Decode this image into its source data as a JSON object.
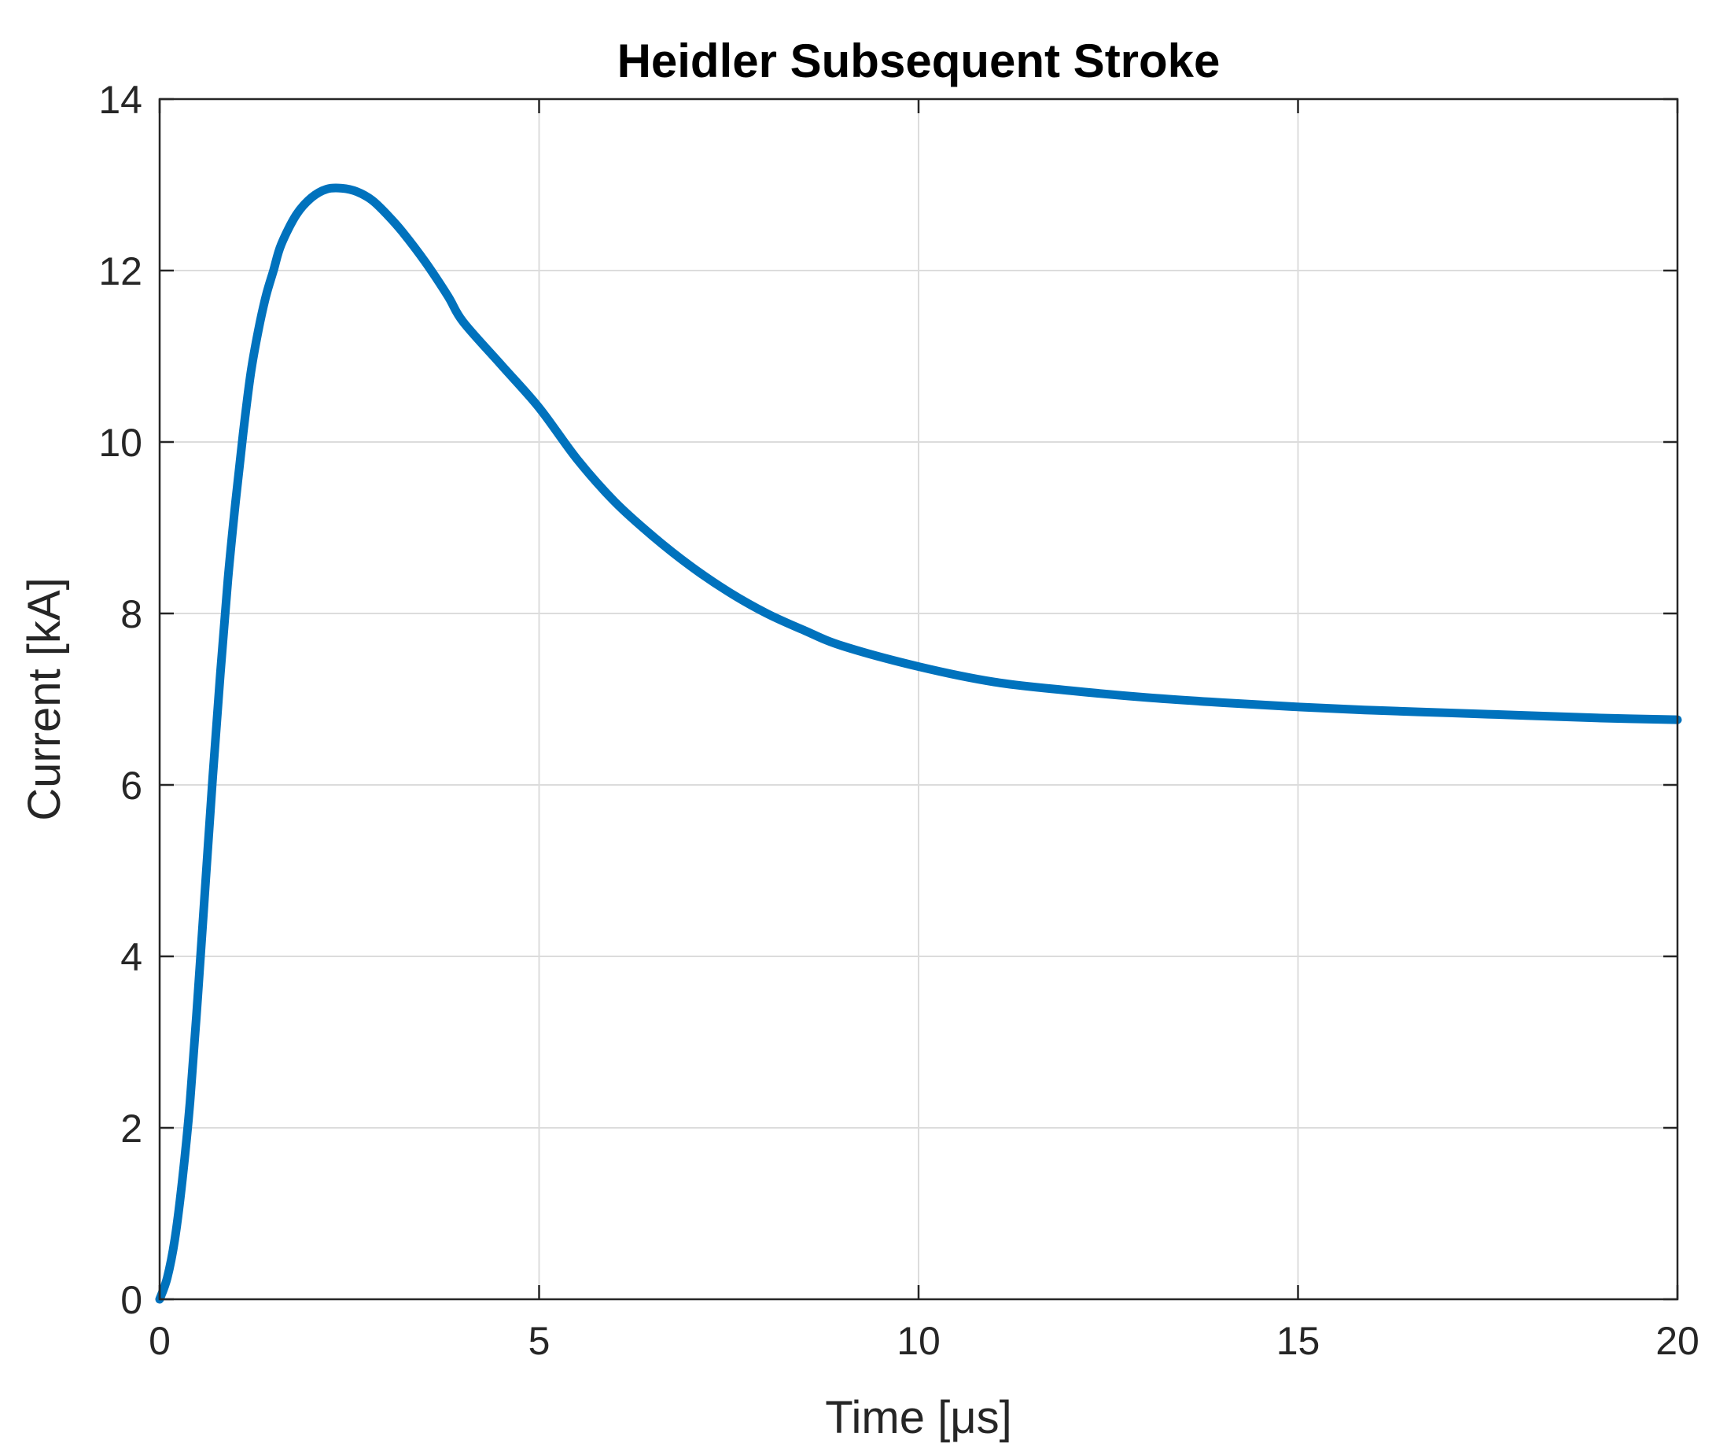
{
  "chart_data": {
    "type": "line",
    "title": "Heidler Subsequent Stroke",
    "xlabel": "Time [μs]",
    "ylabel": "Current [kA]",
    "xlim": [
      0,
      20
    ],
    "ylim": [
      0,
      14
    ],
    "xticks": [
      0,
      5,
      10,
      15,
      20
    ],
    "yticks": [
      0,
      2,
      4,
      6,
      8,
      10,
      12,
      14
    ],
    "grid": true,
    "legend": "none",
    "series": [
      {
        "color": "#0072BD",
        "x": [
          0,
          0.1,
          0.2,
          0.3,
          0.4,
          0.5,
          0.6,
          0.7,
          0.8,
          0.9,
          1.0,
          1.1,
          1.2,
          1.3,
          1.4,
          1.5,
          1.6,
          1.8,
          2.0,
          2.2,
          2.4,
          2.6,
          2.8,
          3.0,
          3.2,
          3.5,
          3.8,
          4.0,
          4.5,
          5.0,
          5.5,
          6.0,
          6.5,
          7.0,
          7.5,
          8.0,
          8.5,
          9.0,
          10.0,
          11.0,
          12.0,
          13.0,
          14.0,
          15.0,
          16.0,
          17.0,
          18.0,
          19.0,
          20.0
        ],
        "values": [
          0,
          0.25,
          0.7,
          1.4,
          2.3,
          3.5,
          4.8,
          6.1,
          7.3,
          8.4,
          9.3,
          10.1,
          10.8,
          11.3,
          11.7,
          12.0,
          12.3,
          12.65,
          12.85,
          12.95,
          12.96,
          12.92,
          12.82,
          12.65,
          12.45,
          12.1,
          11.7,
          11.4,
          10.9,
          10.4,
          9.8,
          9.3,
          8.9,
          8.55,
          8.25,
          8.0,
          7.8,
          7.62,
          7.38,
          7.2,
          7.1,
          7.02,
          6.96,
          6.91,
          6.87,
          6.84,
          6.81,
          6.78,
          6.76
        ]
      }
    ]
  }
}
